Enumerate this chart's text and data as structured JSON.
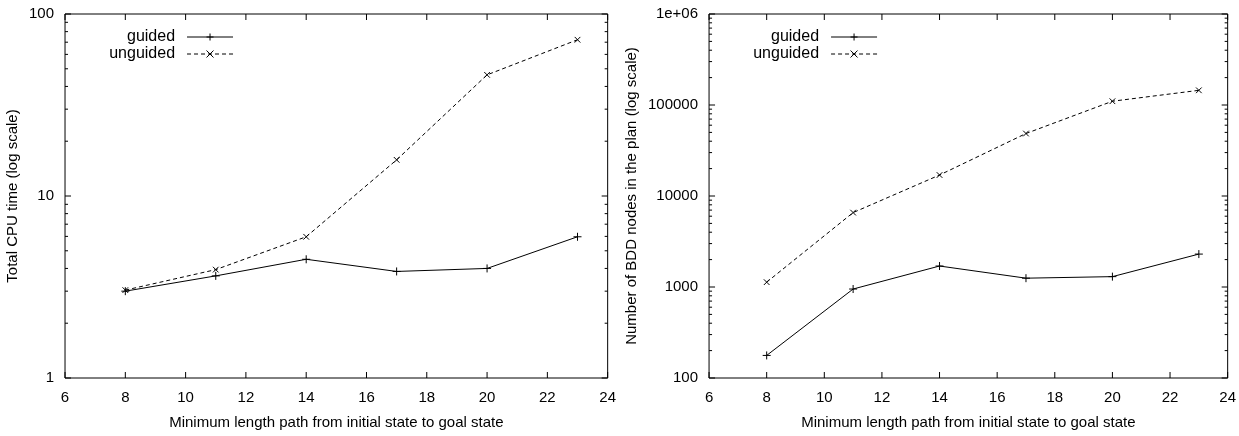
{
  "chart_data": [
    {
      "type": "line",
      "xlabel": "Minimum length path from initial state to goal state",
      "ylabel": "Total CPU time (log scale)",
      "x": [
        8,
        11,
        14,
        17,
        20,
        23
      ],
      "log": "y",
      "grid": false,
      "legend": "top left",
      "xlim": [
        6,
        24
      ],
      "xticks": [
        6,
        8,
        10,
        12,
        14,
        16,
        18,
        20,
        22,
        24
      ],
      "ylim": [
        1,
        100
      ],
      "yticks": [
        1,
        {
          "value": 2,
          "label": null
        },
        {
          "value": 3,
          "label": null
        },
        {
          "value": 4,
          "label": null
        },
        {
          "value": 5,
          "label": null
        },
        {
          "value": 6,
          "label": null
        },
        {
          "value": 7,
          "label": null
        },
        {
          "value": 8,
          "label": null
        },
        {
          "value": 9,
          "label": null
        },
        10,
        {
          "value": 20,
          "label": null
        },
        {
          "value": 30,
          "label": null
        },
        {
          "value": 40,
          "label": null
        },
        {
          "value": 50,
          "label": null
        },
        {
          "value": 60,
          "label": null
        },
        {
          "value": 70,
          "label": null
        },
        {
          "value": 80,
          "label": null
        },
        {
          "value": 90,
          "label": null
        },
        100
      ],
      "series": [
        {
          "name": "guided",
          "color": "#000000",
          "marker": "cross",
          "line_style": "solid",
          "values": [
            3.0,
            3.64,
            4.49,
            3.85,
            4.0,
            5.97
          ]
        },
        {
          "name": "unguided",
          "color": "#000000",
          "marker": "x",
          "line_style": "dashed",
          "values": [
            3.04,
            3.94,
            5.97,
            15.8,
            46.3,
            72.2
          ]
        }
      ]
    },
    {
      "type": "line",
      "xlabel": "Minimum length path from initial state to goal state",
      "ylabel": "Number of BDD nodes in the plan (log scale)",
      "x": [
        8,
        11,
        14,
        17,
        20,
        23
      ],
      "log": "y",
      "grid": false,
      "legend": "top left",
      "xlim": [
        6,
        24
      ],
      "xticks": [
        6,
        8,
        10,
        12,
        14,
        16,
        18,
        20,
        22,
        24
      ],
      "ylim": [
        100,
        1000000
      ],
      "yticks": [
        100,
        {
          "value": 200,
          "label": null
        },
        {
          "value": 300,
          "label": null
        },
        {
          "value": 400,
          "label": null
        },
        {
          "value": 500,
          "label": null
        },
        {
          "value": 600,
          "label": null
        },
        {
          "value": 700,
          "label": null
        },
        {
          "value": 800,
          "label": null
        },
        {
          "value": 900,
          "label": null
        },
        1000,
        {
          "value": 2000,
          "label": null
        },
        {
          "value": 3000,
          "label": null
        },
        {
          "value": 4000,
          "label": null
        },
        {
          "value": 5000,
          "label": null
        },
        {
          "value": 6000,
          "label": null
        },
        {
          "value": 7000,
          "label": null
        },
        {
          "value": 8000,
          "label": null
        },
        {
          "value": 9000,
          "label": null
        },
        10000,
        {
          "value": 20000,
          "label": null
        },
        {
          "value": 30000,
          "label": null
        },
        {
          "value": 40000,
          "label": null
        },
        {
          "value": 50000,
          "label": null
        },
        {
          "value": 60000,
          "label": null
        },
        {
          "value": 70000,
          "label": null
        },
        {
          "value": 80000,
          "label": null
        },
        {
          "value": 90000,
          "label": null
        },
        100000,
        {
          "value": 200000,
          "label": null
        },
        {
          "value": 300000,
          "label": null
        },
        {
          "value": 400000,
          "label": null
        },
        {
          "value": 500000,
          "label": null
        },
        {
          "value": 600000,
          "label": null
        },
        {
          "value": 700000,
          "label": null
        },
        {
          "value": 800000,
          "label": null
        },
        {
          "value": 900000,
          "label": null
        },
        {
          "value": 1000000,
          "label": "1e+06"
        }
      ],
      "series": [
        {
          "name": "guided",
          "color": "#000000",
          "marker": "cross",
          "line_style": "solid",
          "values": [
            177,
            950,
            1700,
            1250,
            1300,
            2300
          ]
        },
        {
          "name": "unguided",
          "color": "#000000",
          "marker": "x",
          "line_style": "dashed",
          "values": [
            1130,
            6570,
            17000,
            48600,
            110000,
            145000
          ]
        }
      ]
    }
  ]
}
